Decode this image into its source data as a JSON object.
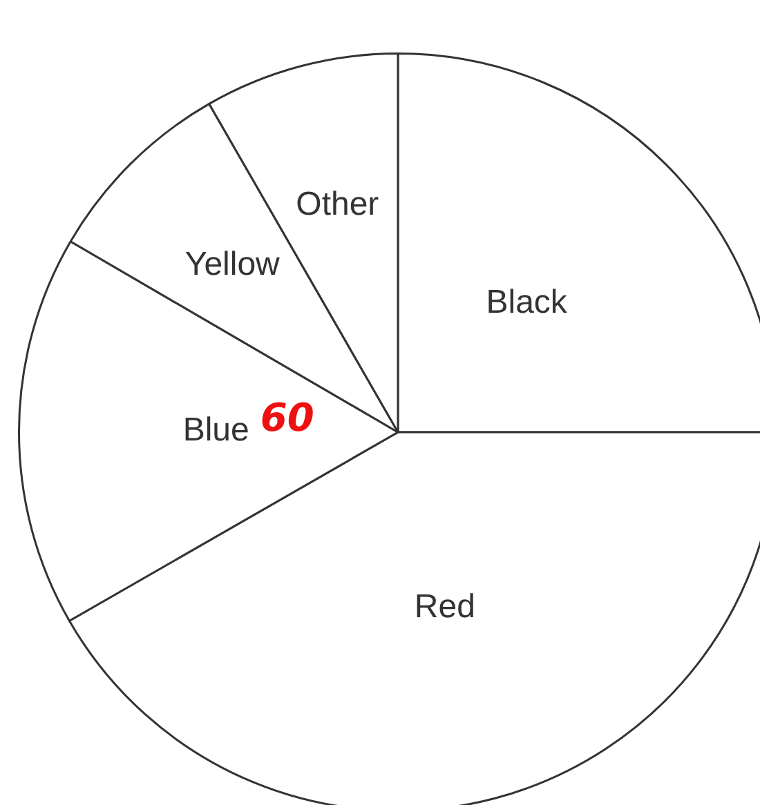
{
  "chart_data": {
    "type": "pie",
    "categories": [
      "Black",
      "Red",
      "Blue",
      "Yellow",
      "Other"
    ],
    "values": [
      25,
      41.7,
      16.7,
      8.3,
      8.3
    ],
    "colors": [
      "#ffffff",
      "#ffffff",
      "#ffffff",
      "#ffffff",
      "#ffffff"
    ],
    "legend": false,
    "annotations": [
      "60"
    ]
  }
}
